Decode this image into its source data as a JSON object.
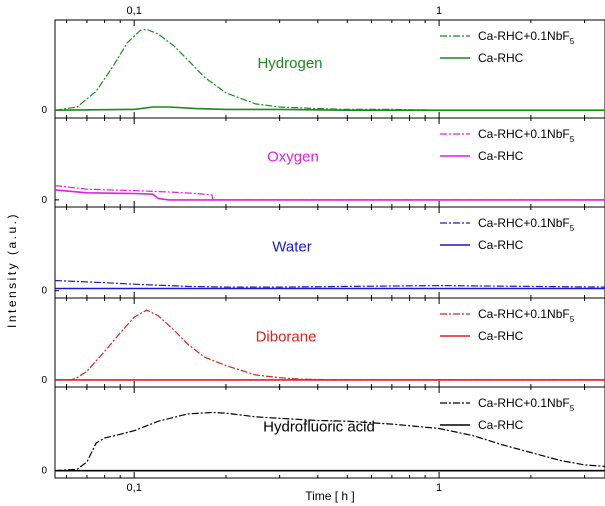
{
  "chart_data": {
    "type": "line",
    "xlabel": "Time [ h ]",
    "ylabel": "Intensity (a.u.)",
    "x_scale": "log",
    "xlim": [
      0.055,
      3.5
    ],
    "x_ticks": [
      {
        "value": 0.1,
        "label": "0,1"
      },
      {
        "value": 1,
        "label": "1"
      }
    ],
    "ylim": [
      -0.1,
      1.15
    ],
    "grid": false,
    "legend_position": "top-right",
    "zero_label": "0",
    "panels": [
      {
        "label": "Hydrogen",
        "label_color": "#1a8a1a",
        "color": "#1a8a1a",
        "series": [
          {
            "name": "Ca-RHC+0.1NbF5",
            "name_main": "Ca-RHC+0.1NbF",
            "name_sub": "5",
            "style": "dashdot",
            "x": [
              0.055,
              0.065,
              0.075,
              0.085,
              0.095,
              0.105,
              0.11,
              0.12,
              0.135,
              0.15,
              0.17,
              0.2,
              0.25,
              0.3,
              0.4,
              0.5,
              0.7,
              1,
              2,
              3.5
            ],
            "y": [
              0,
              0.04,
              0.24,
              0.55,
              0.86,
              1.02,
              1.03,
              0.97,
              0.82,
              0.64,
              0.42,
              0.22,
              0.08,
              0.04,
              0.02,
              0.01,
              0.01,
              0,
              0,
              0
            ]
          },
          {
            "name": "Ca-RHC",
            "name_main": "Ca-RHC",
            "name_sub": "",
            "style": "solid",
            "x": [
              0.055,
              0.1,
              0.115,
              0.13,
              0.16,
              0.2,
              0.3,
              0.5,
              1,
              2,
              3.5
            ],
            "y": [
              0,
              0.01,
              0.04,
              0.04,
              0.02,
              0.01,
              0.01,
              0,
              0,
              0,
              0
            ]
          }
        ]
      },
      {
        "label": "Oxygen",
        "label_color": "#e020e0",
        "color": "#e020e0",
        "series": [
          {
            "name": "Ca-RHC+0.1NbF5",
            "name_main": "Ca-RHC+0.1NbF",
            "name_sub": "5",
            "style": "dashdot",
            "x": [
              0.055,
              0.07,
              0.1,
              0.13,
              0.16,
              0.18,
              0.181,
              0.2,
              0.5,
              1,
              2,
              3.5
            ],
            "y": [
              0.2,
              0.15,
              0.13,
              0.11,
              0.09,
              0.07,
              0,
              0,
              0,
              0,
              0,
              0
            ]
          },
          {
            "name": "Ca-RHC",
            "name_main": "Ca-RHC",
            "name_sub": "",
            "style": "solid",
            "x": [
              0.055,
              0.07,
              0.1,
              0.115,
              0.12,
              0.13,
              0.2,
              0.5,
              1,
              2,
              3.5
            ],
            "y": [
              0.14,
              0.1,
              0.09,
              0.08,
              0.02,
              0,
              0,
              0,
              0,
              0,
              0
            ]
          }
        ]
      },
      {
        "label": "Water",
        "label_color": "#1a1acc",
        "color": "#1a1acc",
        "series": [
          {
            "name": "Ca-RHC+0.1NbF5",
            "name_main": "Ca-RHC+0.1NbF",
            "name_sub": "5",
            "style": "dashdot",
            "x": [
              0.055,
              0.08,
              0.1,
              0.15,
              0.2,
              0.3,
              0.5,
              1,
              2,
              3.5
            ],
            "y": [
              0.14,
              0.11,
              0.09,
              0.06,
              0.05,
              0.05,
              0.06,
              0.07,
              0.06,
              0.05
            ]
          },
          {
            "name": "Ca-RHC",
            "name_main": "Ca-RHC",
            "name_sub": "",
            "style": "solid",
            "x": [
              0.055,
              0.1,
              0.2,
              0.5,
              1,
              2,
              3.5
            ],
            "y": [
              0.03,
              0.03,
              0.03,
              0.03,
              0.03,
              0.03,
              0.03
            ]
          }
        ]
      },
      {
        "label": "Diborane",
        "label_color": "#e02020",
        "color": "#e02020",
        "series": [
          {
            "name": "Ca-RHC+0.1NbF5",
            "name_main": "Ca-RHC+0.1NbF",
            "name_sub": "5",
            "style": "dashdot",
            "x": [
              0.055,
              0.062,
              0.065,
              0.07,
              0.08,
              0.09,
              0.1,
              0.11,
              0.12,
              0.135,
              0.15,
              0.17,
              0.2,
              0.25,
              0.3,
              0.35,
              0.5,
              1,
              3.5
            ],
            "y": [
              0,
              0,
              0.03,
              0.12,
              0.4,
              0.66,
              0.88,
              0.98,
              0.9,
              0.7,
              0.5,
              0.32,
              0.2,
              0.07,
              0.03,
              0.01,
              0,
              0,
              0
            ]
          },
          {
            "name": "Ca-RHC",
            "name_main": "Ca-RHC",
            "name_sub": "",
            "style": "solid",
            "x": [
              0.055,
              0.1,
              0.5,
              1,
              3.5
            ],
            "y": [
              0,
              0,
              0,
              0,
              0
            ]
          }
        ]
      },
      {
        "label": "Hydrofluoric acid",
        "label_color": "#000000",
        "color": "#000000",
        "series": [
          {
            "name": "Ca-RHC+0.1NbF5",
            "name_main": "Ca-RHC+0.1NbF",
            "name_sub": "5",
            "style": "dashdot",
            "x": [
              0.055,
              0.065,
              0.07,
              0.075,
              0.08,
              0.09,
              0.1,
              0.12,
              0.15,
              0.18,
              0.2,
              0.25,
              0.3,
              0.4,
              0.5,
              0.7,
              1,
              1.3,
              1.6,
              2,
              2.5,
              3,
              3.5
            ],
            "y": [
              0,
              0.02,
              0.12,
              0.38,
              0.45,
              0.5,
              0.55,
              0.68,
              0.78,
              0.8,
              0.79,
              0.74,
              0.72,
              0.69,
              0.68,
              0.64,
              0.58,
              0.48,
              0.36,
              0.25,
              0.14,
              0.08,
              0.06
            ]
          },
          {
            "name": "Ca-RHC",
            "name_main": "Ca-RHC",
            "name_sub": "",
            "style": "solid",
            "x": [
              0.055,
              0.1,
              0.5,
              1,
              3.5
            ],
            "y": [
              0,
              0,
              0,
              0,
              0
            ]
          }
        ]
      }
    ]
  }
}
